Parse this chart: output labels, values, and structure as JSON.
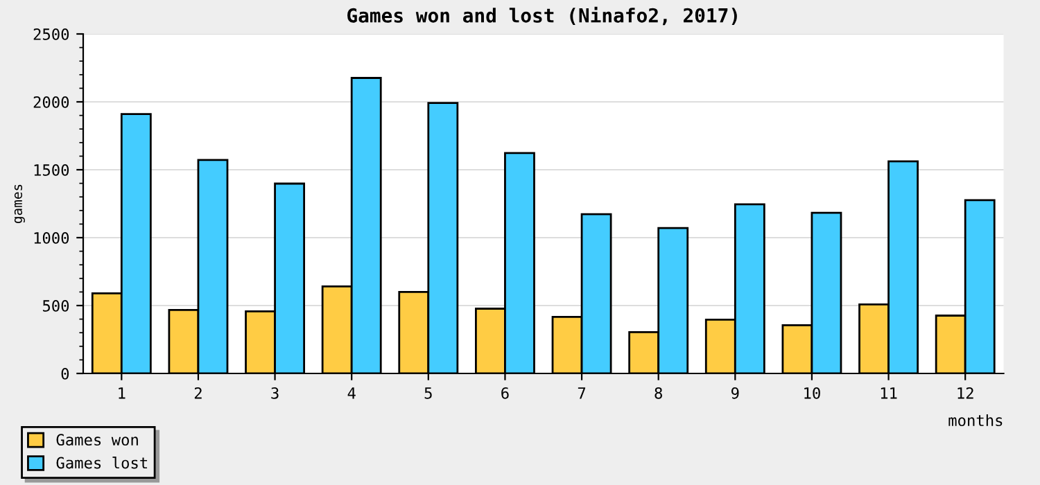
{
  "chart_data": {
    "type": "bar",
    "title": "Games won and lost (Ninafo2, 2017)",
    "xlabel": "months",
    "ylabel": "games",
    "categories": [
      "1",
      "2",
      "3",
      "4",
      "5",
      "6",
      "7",
      "8",
      "9",
      "10",
      "11",
      "12"
    ],
    "series": [
      {
        "name": "Games won",
        "color": "#ffcc44",
        "values": [
          590,
          467,
          457,
          641,
          600,
          477,
          416,
          304,
          396,
          355,
          508,
          426
        ]
      },
      {
        "name": "Games lost",
        "color": "#44ccff",
        "values": [
          1910,
          1572,
          1398,
          2176,
          1992,
          1623,
          1173,
          1071,
          1245,
          1183,
          1562,
          1276
        ]
      }
    ],
    "ylim": [
      0,
      2500
    ],
    "yticks": [
      0,
      500,
      1000,
      1500,
      2000,
      2500
    ],
    "grid": "y",
    "legend": "bottom left"
  }
}
